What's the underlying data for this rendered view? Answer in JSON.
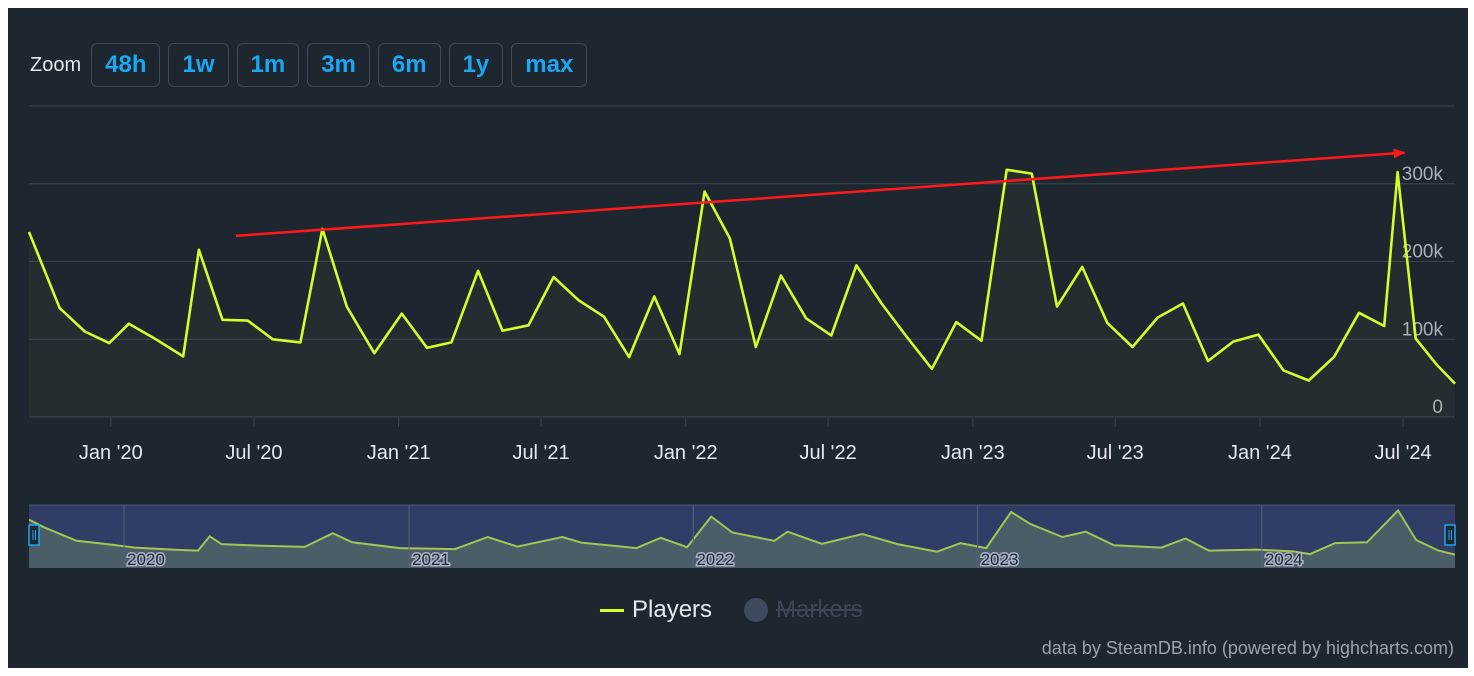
{
  "zoom": {
    "label": "Zoom",
    "buttons": [
      "48h",
      "1w",
      "1m",
      "3m",
      "6m",
      "1y",
      "max"
    ]
  },
  "legend": {
    "players": "Players",
    "markers": "Markers"
  },
  "credit": "data by SteamDB.info (powered by highcharts.com)",
  "colors": {
    "background": "#1e2630",
    "series": "#d0ff2a",
    "trend_arrow": "#ff1a1a",
    "zoom_text": "#1ba7f1",
    "navigator": "#34406e"
  },
  "chart_data": {
    "type": "line",
    "title": "",
    "xlabel": "",
    "ylabel": "",
    "ylim": [
      0,
      400000
    ],
    "yticks": [
      0,
      100000,
      200000,
      300000
    ],
    "ytick_labels": [
      "0",
      "100k",
      "200k",
      "300k"
    ],
    "grid": true,
    "y_axis_side": "right",
    "x_range": [
      "2019-09-19",
      "2024-09-05"
    ],
    "xticks": [
      "2020-01-01",
      "2020-07-01",
      "2021-01-01",
      "2021-07-01",
      "2022-01-01",
      "2022-07-01",
      "2023-01-01",
      "2023-07-01",
      "2024-01-01",
      "2024-07-01"
    ],
    "xtick_labels": [
      "Jan '20",
      "Jul '20",
      "Jan '21",
      "Jul '21",
      "Jan '22",
      "Jul '22",
      "Jan '23",
      "Jul '23",
      "Jan '24",
      "Jul '24"
    ],
    "series": [
      {
        "name": "Players",
        "points": [
          [
            "2019-09-19",
            238000
          ],
          [
            "2019-10-28",
            140000
          ],
          [
            "2019-11-29",
            110000
          ],
          [
            "2019-12-30",
            95000
          ],
          [
            "2020-01-24",
            120000
          ],
          [
            "2020-02-24",
            102000
          ],
          [
            "2020-04-02",
            78000
          ],
          [
            "2020-04-22",
            215000
          ],
          [
            "2020-05-22",
            125000
          ],
          [
            "2020-06-23",
            124000
          ],
          [
            "2020-07-25",
            100000
          ],
          [
            "2020-08-29",
            96000
          ],
          [
            "2020-09-26",
            242000
          ],
          [
            "2020-10-27",
            142000
          ],
          [
            "2020-12-01",
            82000
          ],
          [
            "2021-01-05",
            133000
          ],
          [
            "2021-02-06",
            89000
          ],
          [
            "2021-03-09",
            96000
          ],
          [
            "2021-04-12",
            188000
          ],
          [
            "2021-05-13",
            111000
          ],
          [
            "2021-06-15",
            118000
          ],
          [
            "2021-07-17",
            180000
          ],
          [
            "2021-08-18",
            150000
          ],
          [
            "2021-09-19",
            129000
          ],
          [
            "2021-10-21",
            77000
          ],
          [
            "2021-11-22",
            155000
          ],
          [
            "2021-12-24",
            81000
          ],
          [
            "2022-01-25",
            290000
          ],
          [
            "2022-02-26",
            230000
          ],
          [
            "2022-03-31",
            90000
          ],
          [
            "2022-05-02",
            182000
          ],
          [
            "2022-06-03",
            127000
          ],
          [
            "2022-07-05",
            105000
          ],
          [
            "2022-08-06",
            195000
          ],
          [
            "2022-09-07",
            146000
          ],
          [
            "2022-10-09",
            103000
          ],
          [
            "2022-11-10",
            62000
          ],
          [
            "2022-12-11",
            122000
          ],
          [
            "2023-01-12",
            98000
          ],
          [
            "2023-02-13",
            318000
          ],
          [
            "2023-03-17",
            313000
          ],
          [
            "2023-04-18",
            142000
          ],
          [
            "2023-05-20",
            193000
          ],
          [
            "2023-06-21",
            121000
          ],
          [
            "2023-07-23",
            90000
          ],
          [
            "2023-08-24",
            128000
          ],
          [
            "2023-09-25",
            146000
          ],
          [
            "2023-10-27",
            72000
          ],
          [
            "2023-11-28",
            97000
          ],
          [
            "2023-12-30",
            106000
          ],
          [
            "2024-01-31",
            60000
          ],
          [
            "2024-03-03",
            47000
          ],
          [
            "2024-04-04",
            77000
          ],
          [
            "2024-05-06",
            134000
          ],
          [
            "2024-06-07",
            117000
          ],
          [
            "2024-06-24",
            315000
          ],
          [
            "2024-07-17",
            101000
          ],
          [
            "2024-08-13",
            67000
          ],
          [
            "2024-09-05",
            43000
          ]
        ]
      }
    ],
    "annotations": [
      {
        "type": "arrow",
        "from": [
          "2020-06-08",
          233000
        ],
        "to": [
          "2024-07-03",
          340000
        ]
      }
    ],
    "navigator": {
      "year_labels": [
        "2020",
        "2021",
        "2022",
        "2023",
        "2024"
      ],
      "year_starts": [
        "2020-01-01",
        "2021-01-01",
        "2022-01-01",
        "2023-01-01",
        "2024-01-01"
      ],
      "range": [
        "2019-09-01",
        "2024-09-05"
      ],
      "selected": [
        "2019-09-01",
        "2024-09-05"
      ],
      "points": [
        [
          "2019-09-01",
          280000
        ],
        [
          "2019-09-20",
          230000
        ],
        [
          "2019-11-01",
          140000
        ],
        [
          "2019-12-10",
          118000
        ],
        [
          "2020-01-15",
          95000
        ],
        [
          "2020-03-10",
          80000
        ],
        [
          "2020-04-05",
          75000
        ],
        [
          "2020-04-20",
          170000
        ],
        [
          "2020-05-05",
          118000
        ],
        [
          "2020-06-20",
          108000
        ],
        [
          "2020-08-20",
          100000
        ],
        [
          "2020-09-25",
          190000
        ],
        [
          "2020-10-20",
          130000
        ],
        [
          "2020-12-20",
          92000
        ],
        [
          "2021-03-01",
          85000
        ],
        [
          "2021-04-12",
          165000
        ],
        [
          "2021-05-20",
          102000
        ],
        [
          "2021-07-17",
          165000
        ],
        [
          "2021-08-10",
          128000
        ],
        [
          "2021-10-20",
          92000
        ],
        [
          "2021-11-20",
          160000
        ],
        [
          "2021-12-24",
          98000
        ],
        [
          "2022-01-24",
          300000
        ],
        [
          "2022-02-20",
          195000
        ],
        [
          "2022-04-15",
          140000
        ],
        [
          "2022-05-02",
          200000
        ],
        [
          "2022-06-15",
          120000
        ],
        [
          "2022-08-06",
          185000
        ],
        [
          "2022-09-20",
          118000
        ],
        [
          "2022-11-10",
          68000
        ],
        [
          "2022-12-10",
          125000
        ],
        [
          "2023-01-12",
          92000
        ],
        [
          "2023-02-13",
          330000
        ],
        [
          "2023-03-10",
          250000
        ],
        [
          "2023-04-20",
          165000
        ],
        [
          "2023-05-20",
          200000
        ],
        [
          "2023-06-25",
          110000
        ],
        [
          "2023-08-25",
          95000
        ],
        [
          "2023-09-25",
          155000
        ],
        [
          "2023-10-25",
          75000
        ],
        [
          "2023-12-25",
          82000
        ],
        [
          "2024-02-10",
          70000
        ],
        [
          "2024-03-03",
          52000
        ],
        [
          "2024-04-04",
          125000
        ],
        [
          "2024-05-15",
          130000
        ],
        [
          "2024-06-24",
          340000
        ],
        [
          "2024-07-17",
          145000
        ],
        [
          "2024-08-15",
          75000
        ],
        [
          "2024-09-05",
          48000
        ]
      ]
    }
  }
}
